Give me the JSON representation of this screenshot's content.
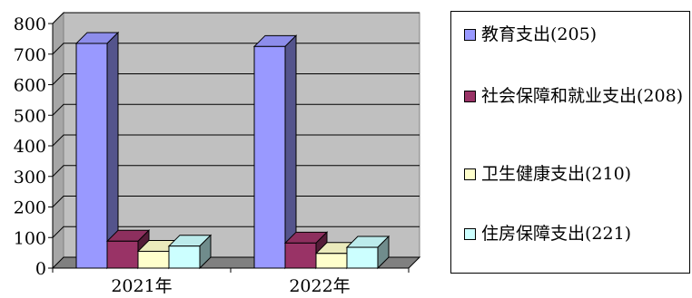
{
  "chart_data": {
    "type": "bar",
    "categories": [
      "2021年",
      "2022年"
    ],
    "series": [
      {
        "name": "教育支出(205)",
        "values": [
          735,
          725
        ],
        "color": "#9999ff"
      },
      {
        "name": "社会保障和就业支出(208)",
        "values": [
          88,
          82
        ],
        "color": "#993366"
      },
      {
        "name": "卫生健康支出(210)",
        "values": [
          55,
          48
        ],
        "color": "#ffffcc"
      },
      {
        "name": "住房保障支出(221)",
        "values": [
          72,
          68
        ],
        "color": "#ccffff"
      }
    ],
    "ylim": [
      0,
      800
    ],
    "yticks": [
      "0",
      "100",
      "200",
      "300",
      "400",
      "500",
      "600",
      "700",
      "800"
    ],
    "grid": true,
    "legend": "right",
    "wall_color": "#c0c0c0",
    "floor_color": "#808080"
  }
}
